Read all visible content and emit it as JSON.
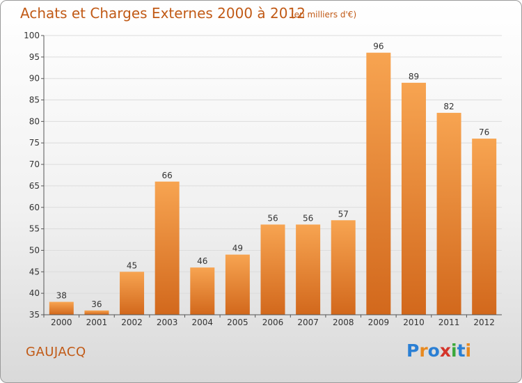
{
  "chart_data": {
    "type": "bar",
    "title": "Achats et Charges Externes 2000 à 2012",
    "subtitle": "(en milliers d'€)",
    "categories": [
      "2000",
      "2001",
      "2002",
      "2003",
      "2004",
      "2005",
      "2006",
      "2007",
      "2008",
      "2009",
      "2010",
      "2011",
      "2012"
    ],
    "values": [
      38,
      36,
      45,
      66,
      46,
      49,
      56,
      56,
      57,
      96,
      89,
      82,
      76
    ],
    "ylim": [
      35,
      100
    ],
    "yticks": [
      35,
      40,
      45,
      50,
      55,
      60,
      65,
      70,
      75,
      80,
      85,
      90,
      95,
      100
    ],
    "grid": true,
    "bar_color": "#f28b2c",
    "bar_color_light": "#f7a451",
    "bar_color_dark": "#d2681c"
  },
  "commune": "GAUJACQ",
  "logo": {
    "letters": [
      "P",
      "r",
      "o",
      "x",
      "i",
      "t",
      "i"
    ],
    "colors": [
      "#2a7fd4",
      "#e8891f",
      "#2a7fd4",
      "#d4342a",
      "#3aa83a",
      "#2a7fd4",
      "#e8891f"
    ]
  }
}
